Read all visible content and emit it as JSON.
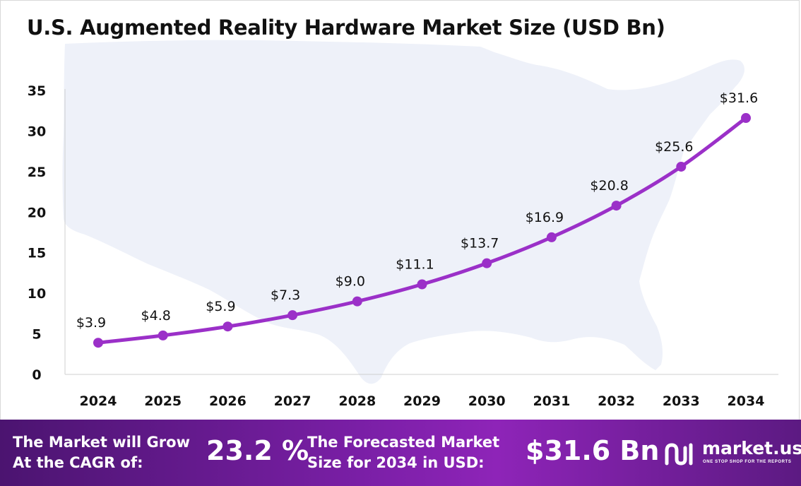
{
  "chart_data": {
    "type": "line",
    "title": "U.S. Augmented Reality Hardware Market Size (USD Bn)",
    "categories": [
      "2024",
      "2025",
      "2026",
      "2027",
      "2028",
      "2029",
      "2030",
      "2031",
      "2032",
      "2033",
      "2034"
    ],
    "series": [
      {
        "values": [
          3.9,
          4.8,
          5.9,
          7.3,
          9.0,
          11.1,
          13.7,
          16.9,
          20.8,
          25.6,
          31.6
        ]
      }
    ],
    "data_labels": [
      "$3.9",
      "$4.8",
      "$5.9",
      "$7.3",
      "$9.0",
      "$11.1",
      "$13.7",
      "$16.9",
      "$20.8",
      "$25.6",
      "$31.6"
    ],
    "y_ticks": [
      0,
      5,
      10,
      15,
      20,
      25,
      30,
      35
    ],
    "ylim": [
      0,
      35
    ],
    "grid": false,
    "xlabel": "",
    "ylabel": "",
    "colors": {
      "line": "#9b30c8",
      "marker": "#9b30c8",
      "map": "#eef1f9"
    }
  },
  "footer": {
    "cagr_text": "The Market will Grow\nAt the CAGR of:",
    "cagr_value": "23.2 %",
    "forecast_text": "The Forecasted Market\nSize for 2034 in USD:",
    "forecast_value": "$31.6 Bn"
  },
  "logo": {
    "name": "market.us",
    "tagline": "ONE STOP SHOP FOR THE REPORTS"
  }
}
